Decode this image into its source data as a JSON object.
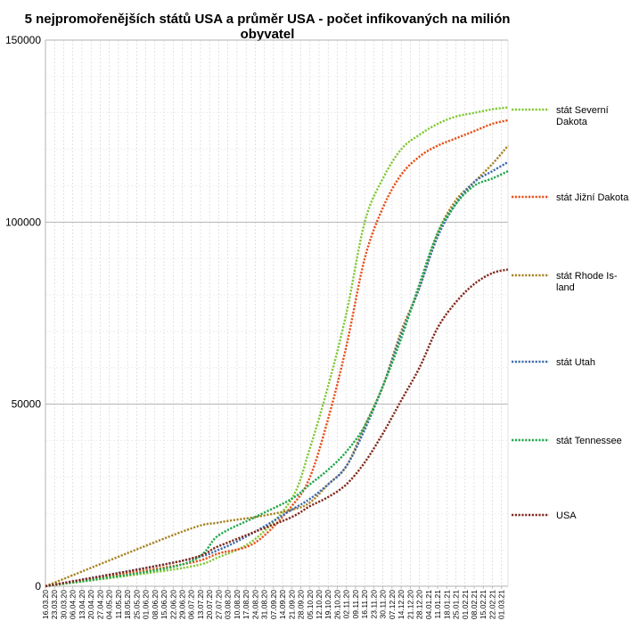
{
  "chart_data": {
    "type": "line",
    "title": "5 nejpromořenějších států USA a průměr USA - počet infikovaných na milión obyvatel",
    "title_lines": [
      "5 nejpromořenějších států USA a průměr USA - počet infikovaných na milión",
      "obyvatel"
    ],
    "ylim": [
      0,
      150000
    ],
    "y_ticks": [
      0,
      50000,
      100000,
      150000
    ],
    "y_tick_labels": [
      "0",
      "50000",
      "100000",
      "150000"
    ],
    "grid": true,
    "legend_position": "right",
    "x_tick_labels": [
      "16.03.20",
      "23.03.20",
      "30.03.20",
      "06.04.20",
      "13.04.20",
      "20.04.20",
      "27.04.20",
      "04.05.20",
      "11.05.20",
      "18.05.20",
      "25.05.20",
      "01.06.20",
      "08.06.20",
      "15.06.20",
      "22.06.20",
      "29.06.20",
      "06.07.20",
      "13.07.20",
      "20.07.20",
      "27.07.20",
      "03.08.20",
      "10.08.20",
      "17.08.20",
      "24.08.20",
      "31.08.20",
      "07.09.20",
      "14.09.20",
      "21.09.20",
      "28.09.20",
      "05.10.20",
      "12.10.20",
      "19.10.20",
      "26.10.20",
      "02.11.20",
      "09.11.20",
      "16.11.20",
      "23.11.20",
      "30.11.20",
      "07.12.20",
      "14.12.20",
      "21.12.20",
      "28.12.20",
      "04.01.21",
      "11.01.21",
      "18.01.21",
      "25.01.21",
      "01.02.21",
      "08.02.21",
      "15.02.21",
      "22.02.21",
      "01.03.21"
    ],
    "x": [
      "16.03.20",
      "29.06.20",
      "27.07.20",
      "24.08.20",
      "21.09.20",
      "05.10.20",
      "19.10.20",
      "02.11.20",
      "16.11.20",
      "30.11.20",
      "14.12.20",
      "28.12.20",
      "11.01.21",
      "25.01.21",
      "08.02.21",
      "22.02.21",
      "06.03.21"
    ],
    "series": [
      {
        "name": "stát Severní Dakota",
        "label_lines": [
          "stát Severní",
          "Dakota"
        ],
        "color": "#83c837",
        "values": [
          0,
          5000,
          8000,
          13000,
          24000,
          38000,
          55000,
          75000,
          100000,
          112000,
          120000,
          124000,
          127000,
          129000,
          130000,
          131000,
          131500
        ]
      },
      {
        "name": "stát Jižní Dakota",
        "label_lines": [
          "stát Jižní Dakota"
        ],
        "color": "#e8501a",
        "values": [
          0,
          6000,
          9000,
          12000,
          22000,
          30000,
          46000,
          66000,
          90000,
          104000,
          113000,
          118000,
          121000,
          123000,
          125000,
          127000,
          128000
        ]
      },
      {
        "name": "stát Rhode Island",
        "label_lines": [
          "stát Rhode Is-",
          "land"
        ],
        "color": "#a68222",
        "values": [
          0,
          15000,
          17500,
          19000,
          21000,
          23000,
          28000,
          33000,
          44000,
          55000,
          70000,
          82000,
          97000,
          106000,
          111000,
          116000,
          121000
        ]
      },
      {
        "name": "stát Utah",
        "label_lines": [
          "stát Utah"
        ],
        "color": "#3f6aaf",
        "values": [
          0,
          7000,
          10000,
          15000,
          21000,
          24000,
          28000,
          33000,
          43000,
          55000,
          69000,
          82000,
          96000,
          105000,
          111000,
          114000,
          116500
        ]
      },
      {
        "name": "stát Tennessee",
        "label_lines": [
          "stát Tennessee"
        ],
        "color": "#1fa64b",
        "values": [
          0,
          6000,
          14000,
          19000,
          24000,
          28000,
          32000,
          37000,
          44000,
          55000,
          68000,
          83000,
          97000,
          105000,
          110000,
          112000,
          114000
        ]
      },
      {
        "name": "USA",
        "label_lines": [
          "USA"
        ],
        "color": "#80291b",
        "values": [
          0,
          7000,
          11000,
          15000,
          19000,
          22000,
          24500,
          28000,
          34000,
          42000,
          51000,
          60000,
          71000,
          78000,
          83000,
          86000,
          87000
        ]
      }
    ]
  }
}
